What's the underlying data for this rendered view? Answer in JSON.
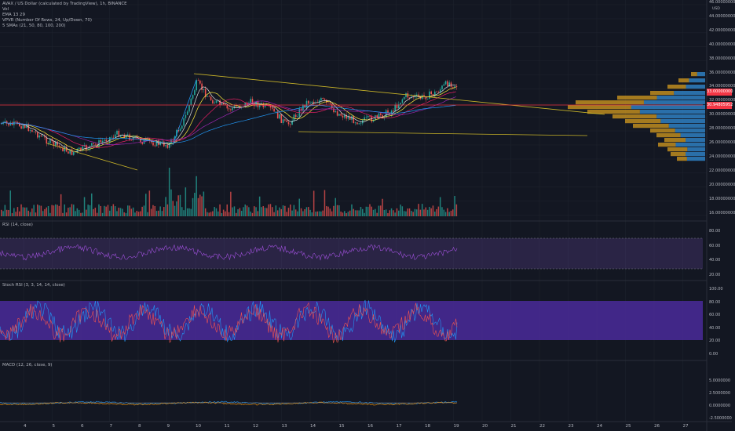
{
  "header": {
    "symbol_line": "AVAX / US Dollar (calculated by TradingView), 1h, BINANCE",
    "indicators": [
      "Vol",
      "EMA 13 29",
      "VPVR (Number Of Rows, 24, Up/Down, 70)",
      "5 SMAs (21, 50, 80, 100, 200)"
    ],
    "currency": "USD"
  },
  "panes": {
    "rsi": {
      "label": "RSI (14, close)",
      "levels": [
        "80.00",
        "60.00",
        "40.00",
        "20.00"
      ]
    },
    "stoch": {
      "label": "Stoch RSI (3, 3, 14, 14, close)",
      "levels": [
        "100.00",
        "80.00",
        "60.00",
        "40.00",
        "20.00",
        "0.00"
      ]
    },
    "macd": {
      "label": "MACD (12, 26, close, 9)",
      "levels": [
        "5.0000000",
        "2.5000000",
        "0.0000000",
        "-2.5000000"
      ]
    }
  },
  "price_axis": [
    "46.00000000",
    "44.00000000",
    "42.00000000",
    "40.00000000",
    "38.00000000",
    "36.00000000",
    "34.00000000",
    "32.00000000",
    "30.00000000",
    "28.00000000",
    "26.00000000",
    "24.00000000",
    "22.00000000",
    "20.00000000",
    "18.00000000",
    "16.00000000"
  ],
  "price_tags": [
    {
      "text": "33.00000000",
      "color": "#f23645"
    },
    {
      "text": "30.94805952",
      "color": "#f23645"
    }
  ],
  "time_axis": [
    "4",
    "5",
    "6",
    "7",
    "8",
    "9",
    "10",
    "11",
    "12",
    "13",
    "14",
    "15",
    "16",
    "17",
    "18",
    "19",
    "20",
    "21",
    "22",
    "23",
    "24",
    "25",
    "26",
    "27"
  ],
  "colors": {
    "background": "#131722",
    "up": "#26a69a",
    "down": "#ef5350",
    "rsi_band": "#7e57c2",
    "stoch_band": "#4a2a9a",
    "vpvr_up": "#2f7fc1",
    "vpvr_down": "#c9931f",
    "trendline": "#c9b428",
    "hline": "#f23645"
  }
}
